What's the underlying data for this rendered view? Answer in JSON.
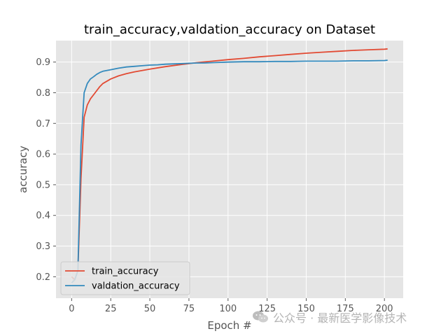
{
  "chart_data": {
    "type": "line",
    "title": "train_accuracy,valdation_accuracy on Dataset",
    "xlabel": "Epoch #",
    "ylabel": "accuracy",
    "xlim": [
      -10,
      212
    ],
    "ylim": [
      0.13,
      0.97
    ],
    "xticks": [
      0,
      25,
      50,
      75,
      100,
      125,
      150,
      175,
      200
    ],
    "yticks": [
      0.2,
      0.3,
      0.4,
      0.5,
      0.6,
      0.7,
      0.8,
      0.9
    ],
    "grid": true,
    "legend_position": "lower-left",
    "series": [
      {
        "name": "train_accuracy",
        "color": "#e24a33",
        "x": [
          0,
          2,
          4,
          6,
          8,
          10,
          12,
          15,
          18,
          20,
          25,
          30,
          35,
          40,
          50,
          60,
          70,
          80,
          90,
          100,
          110,
          120,
          130,
          140,
          150,
          160,
          170,
          180,
          190,
          200,
          202
        ],
        "y": [
          0.2,
          0.19,
          0.22,
          0.52,
          0.72,
          0.76,
          0.78,
          0.8,
          0.82,
          0.83,
          0.845,
          0.855,
          0.862,
          0.868,
          0.877,
          0.885,
          0.892,
          0.898,
          0.903,
          0.908,
          0.912,
          0.917,
          0.921,
          0.925,
          0.929,
          0.932,
          0.935,
          0.938,
          0.94,
          0.942,
          0.943
        ]
      },
      {
        "name": "valdation_accuracy",
        "color": "#348abd",
        "x": [
          0,
          2,
          4,
          6,
          8,
          10,
          12,
          14,
          16,
          18,
          20,
          25,
          30,
          35,
          40,
          45,
          50,
          55,
          60,
          65,
          70,
          75,
          80,
          85,
          90,
          95,
          100,
          110,
          120,
          130,
          140,
          150,
          160,
          170,
          180,
          190,
          200,
          202
        ],
        "y": [
          0.18,
          0.19,
          0.22,
          0.63,
          0.8,
          0.83,
          0.845,
          0.852,
          0.86,
          0.866,
          0.87,
          0.875,
          0.88,
          0.884,
          0.886,
          0.888,
          0.89,
          0.891,
          0.893,
          0.894,
          0.895,
          0.896,
          0.897,
          0.897,
          0.898,
          0.899,
          0.9,
          0.901,
          0.901,
          0.902,
          0.902,
          0.903,
          0.903,
          0.903,
          0.904,
          0.904,
          0.905,
          0.906
        ]
      }
    ]
  },
  "watermark": {
    "text": "公众号 · 最新医学影像技术",
    "icon": "wechat-icon"
  }
}
